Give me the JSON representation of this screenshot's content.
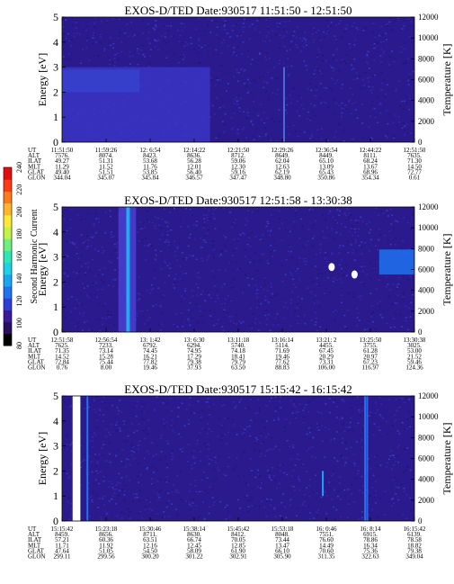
{
  "colorbar": {
    "label": "Second Harmonic Current",
    "ticks": [
      "80",
      "100",
      "120",
      "140",
      "160",
      "180",
      "200",
      "220",
      "240"
    ],
    "colors": [
      "#000000",
      "#2a0f5e",
      "#3a1a9a",
      "#2e3fd8",
      "#1f72f0",
      "#1aa6f2",
      "#20d0e6",
      "#2fe6b4",
      "#6ff07a",
      "#c2f24b",
      "#ffe83a",
      "#ffb52e",
      "#ff7a1f",
      "#ff3a14",
      "#e01010"
    ]
  },
  "panels": [
    {
      "title": "EXOS-D/TED   Date:930517   11:51:50 - 12:51:50",
      "ylabel_left": "Energy [eV]",
      "ylabel_right": "Temperature [K]",
      "yticks_left": [
        "0",
        "1",
        "2",
        "3",
        "4",
        "5"
      ],
      "yticks_right": [
        "0",
        "2000",
        "4000",
        "6000",
        "8000",
        "10000",
        "12000"
      ],
      "row_labels": [
        "UT",
        "ALT",
        "ILAT",
        "MLT",
        "GLAT",
        "GLON"
      ],
      "columns": [
        [
          "11:51:50",
          "7576.",
          "49.27",
          "11.29",
          "49.40",
          "344.04"
        ],
        [
          "11:59:26",
          "8074.",
          "51.31",
          "11.52",
          "51.51",
          "345.07"
        ],
        [
          "12: 6:54",
          "8423.",
          "53.68",
          "11.76",
          "53.85",
          "345.84"
        ],
        [
          "12:14:22",
          "8636.",
          "56.28",
          "12.01",
          "56.40",
          "346.57"
        ],
        [
          "12:21:50",
          "8712.",
          "59.06",
          "12.30",
          "59.16",
          "347.47"
        ],
        [
          "12:29:26",
          "8649.",
          "62.04",
          "12.63",
          "62.19",
          "348.80"
        ],
        [
          "12:36:54",
          "8449.",
          "65.10",
          "13.09",
          "65.43",
          "350.86"
        ],
        [
          "12:44:22",
          "8111.",
          "68.24",
          "13.67",
          "68.96",
          "354.34"
        ],
        [
          "12:51:50",
          "7635.",
          "71.30",
          "14.50",
          "72.77",
          "0.61"
        ]
      ],
      "chart_data": {
        "type": "heatmap",
        "x_start": "11:51:50",
        "x_end": "12:51:50",
        "ylim": [
          0,
          5
        ],
        "y2lim": [
          0,
          12000
        ],
        "background": "#2a1a8e",
        "features": [
          {
            "kind": "band",
            "x_from": 0.0,
            "x_to": 0.22,
            "y_from": 2.0,
            "y_to": 2.9,
            "color": "#1f8df0"
          },
          {
            "kind": "band",
            "x_from": 0.0,
            "x_to": 0.42,
            "y_from": 0.0,
            "y_to": 3.0,
            "color": "#3a35c4"
          },
          {
            "kind": "line",
            "x": 0.63,
            "y_from": 0.0,
            "y_to": 3.0,
            "color": "#4a6ad8"
          }
        ]
      }
    },
    {
      "title": "EXOS-D/TED   Date:930517   12:51:58 - 13:30:38",
      "ylabel_left": "Energy [eV]",
      "ylabel_right": "Temperature [K]",
      "yticks_left": [
        "0",
        "1",
        "2",
        "3",
        "4",
        "5"
      ],
      "yticks_right": [
        "0",
        "2000",
        "4000",
        "6000",
        "8000",
        "10000",
        "12000"
      ],
      "row_labels": [
        "UT",
        "ALT",
        "ILAT",
        "MLT",
        "GLAT",
        "GLON"
      ],
      "columns": [
        [
          "12:51:58",
          "7625.",
          "71.35",
          "14.52",
          "72.84",
          "0.76"
        ],
        [
          "12:56:54",
          "7233.",
          "73.14",
          "15.28",
          "75.44",
          "8.00"
        ],
        [
          "13: 1:42",
          "6792.",
          "74.45",
          "16.21",
          "77.82",
          "19.46"
        ],
        [
          "13: 6:30",
          "6294.",
          "74.95",
          "17.29",
          "79.38",
          "37.93"
        ],
        [
          "13:11:18",
          "5740.",
          "74.18",
          "18.41",
          "79.79",
          "63.50"
        ],
        [
          "13:16:14",
          "5114.",
          "71.69",
          "19.46",
          "77.62",
          "88.83"
        ],
        [
          "13:21: 2",
          "4455.",
          "67.45",
          "20.29",
          "73.31",
          "106.00"
        ],
        [
          "13:25:50",
          "3755.",
          "61.28",
          "20.97",
          "67.23",
          "116.97"
        ],
        [
          "13:30:38",
          "3025.",
          "53.00",
          "21.52",
          "59.46",
          "124.36"
        ]
      ],
      "chart_data": {
        "type": "heatmap",
        "x_start": "12:51:58",
        "x_end": "13:30:38",
        "ylim": [
          0,
          5
        ],
        "y2lim": [
          0,
          12000
        ],
        "background": "#2a1a8e",
        "features": [
          {
            "kind": "band",
            "x_from": 0.16,
            "x_to": 0.21,
            "y_from": 0.0,
            "y_to": 5.0,
            "color": "#4a3fd0"
          },
          {
            "kind": "line",
            "x": 0.185,
            "y_from": 0.0,
            "y_to": 5.0,
            "color": "#20b6ee"
          },
          {
            "kind": "line",
            "x": 0.19,
            "y_from": 0.0,
            "y_to": 5.0,
            "color": "#1aa6f2"
          },
          {
            "kind": "band",
            "x_from": 0.9,
            "x_to": 1.0,
            "y_from": 2.3,
            "y_to": 3.3,
            "color": "#1f72f0"
          },
          {
            "kind": "spot",
            "x": 0.765,
            "y": 2.6,
            "color": "#ffffff"
          },
          {
            "kind": "spot",
            "x": 0.83,
            "y": 2.3,
            "color": "#ffffff"
          }
        ]
      }
    },
    {
      "title": "EXOS-D/TED   Date:930517   15:15:42 - 16:15:42",
      "ylabel_left": "Energy [eV]",
      "ylabel_right": "Temperature [K]",
      "yticks_left": [
        "0",
        "1",
        "2",
        "3",
        "4",
        "5"
      ],
      "yticks_right": [
        "0",
        "2000",
        "4000",
        "6000",
        "8000",
        "10000",
        "12000"
      ],
      "row_labels": [
        "UT",
        "ALT",
        "ILAT",
        "MLT",
        "GLAT",
        "GLON"
      ],
      "columns": [
        [
          "15:15:42",
          "8459.",
          "57.21",
          "11.71",
          "47.64",
          "299.11"
        ],
        [
          "15:23:18",
          "8656.",
          "60.36",
          "11.92",
          "51.05",
          "299.56"
        ],
        [
          "15:30:46",
          "8711.",
          "63.51",
          "12.16",
          "54.50",
          "300.20"
        ],
        [
          "15:38:14",
          "8630.",
          "66.74",
          "12.45",
          "58.09",
          "301.22"
        ],
        [
          "15:45:42",
          "8412.",
          "70.05",
          "12.85",
          "61.90",
          "302.91"
        ],
        [
          "15:53:18",
          "8048.",
          "73.44",
          "13.47",
          "66.10",
          "305.90"
        ],
        [
          "16: 0:46",
          "7551.",
          "76.60",
          "14.49",
          "70.60",
          "311.35"
        ],
        [
          "16: 8:14",
          "6915.",
          "78.86",
          "16.34",
          "75.36",
          "322.63"
        ],
        [
          "16:15:42",
          "6139.",
          "78.58",
          "18.82",
          "79.38",
          "349.04"
        ]
      ],
      "chart_data": {
        "type": "heatmap",
        "x_start": "15:15:42",
        "x_end": "16:15:42",
        "ylim": [
          0,
          5
        ],
        "y2lim": [
          0,
          12000
        ],
        "background": "#2a1a8e",
        "features": [
          {
            "kind": "gap",
            "x_from": 0.0,
            "x_to": 0.012,
            "y_from": 0.0,
            "y_to": 5.0,
            "color": "#2a1a8e"
          },
          {
            "kind": "gap",
            "x_from": 0.03,
            "x_to": 0.052,
            "y_from": 0.0,
            "y_to": 5.0,
            "color": "#ffffff"
          },
          {
            "kind": "line",
            "x": 0.072,
            "y_from": 0.0,
            "y_to": 5.0,
            "color": "#1f72f0"
          },
          {
            "kind": "line",
            "x": 0.74,
            "y_from": 1.0,
            "y_to": 2.0,
            "color": "#1aa6f2"
          },
          {
            "kind": "line",
            "x": 0.86,
            "y_from": 0.0,
            "y_to": 5.0,
            "color": "#1f72f0"
          },
          {
            "kind": "line",
            "x": 0.866,
            "y_from": 0.0,
            "y_to": 5.0,
            "color": "#3a5fe0"
          }
        ]
      }
    }
  ]
}
